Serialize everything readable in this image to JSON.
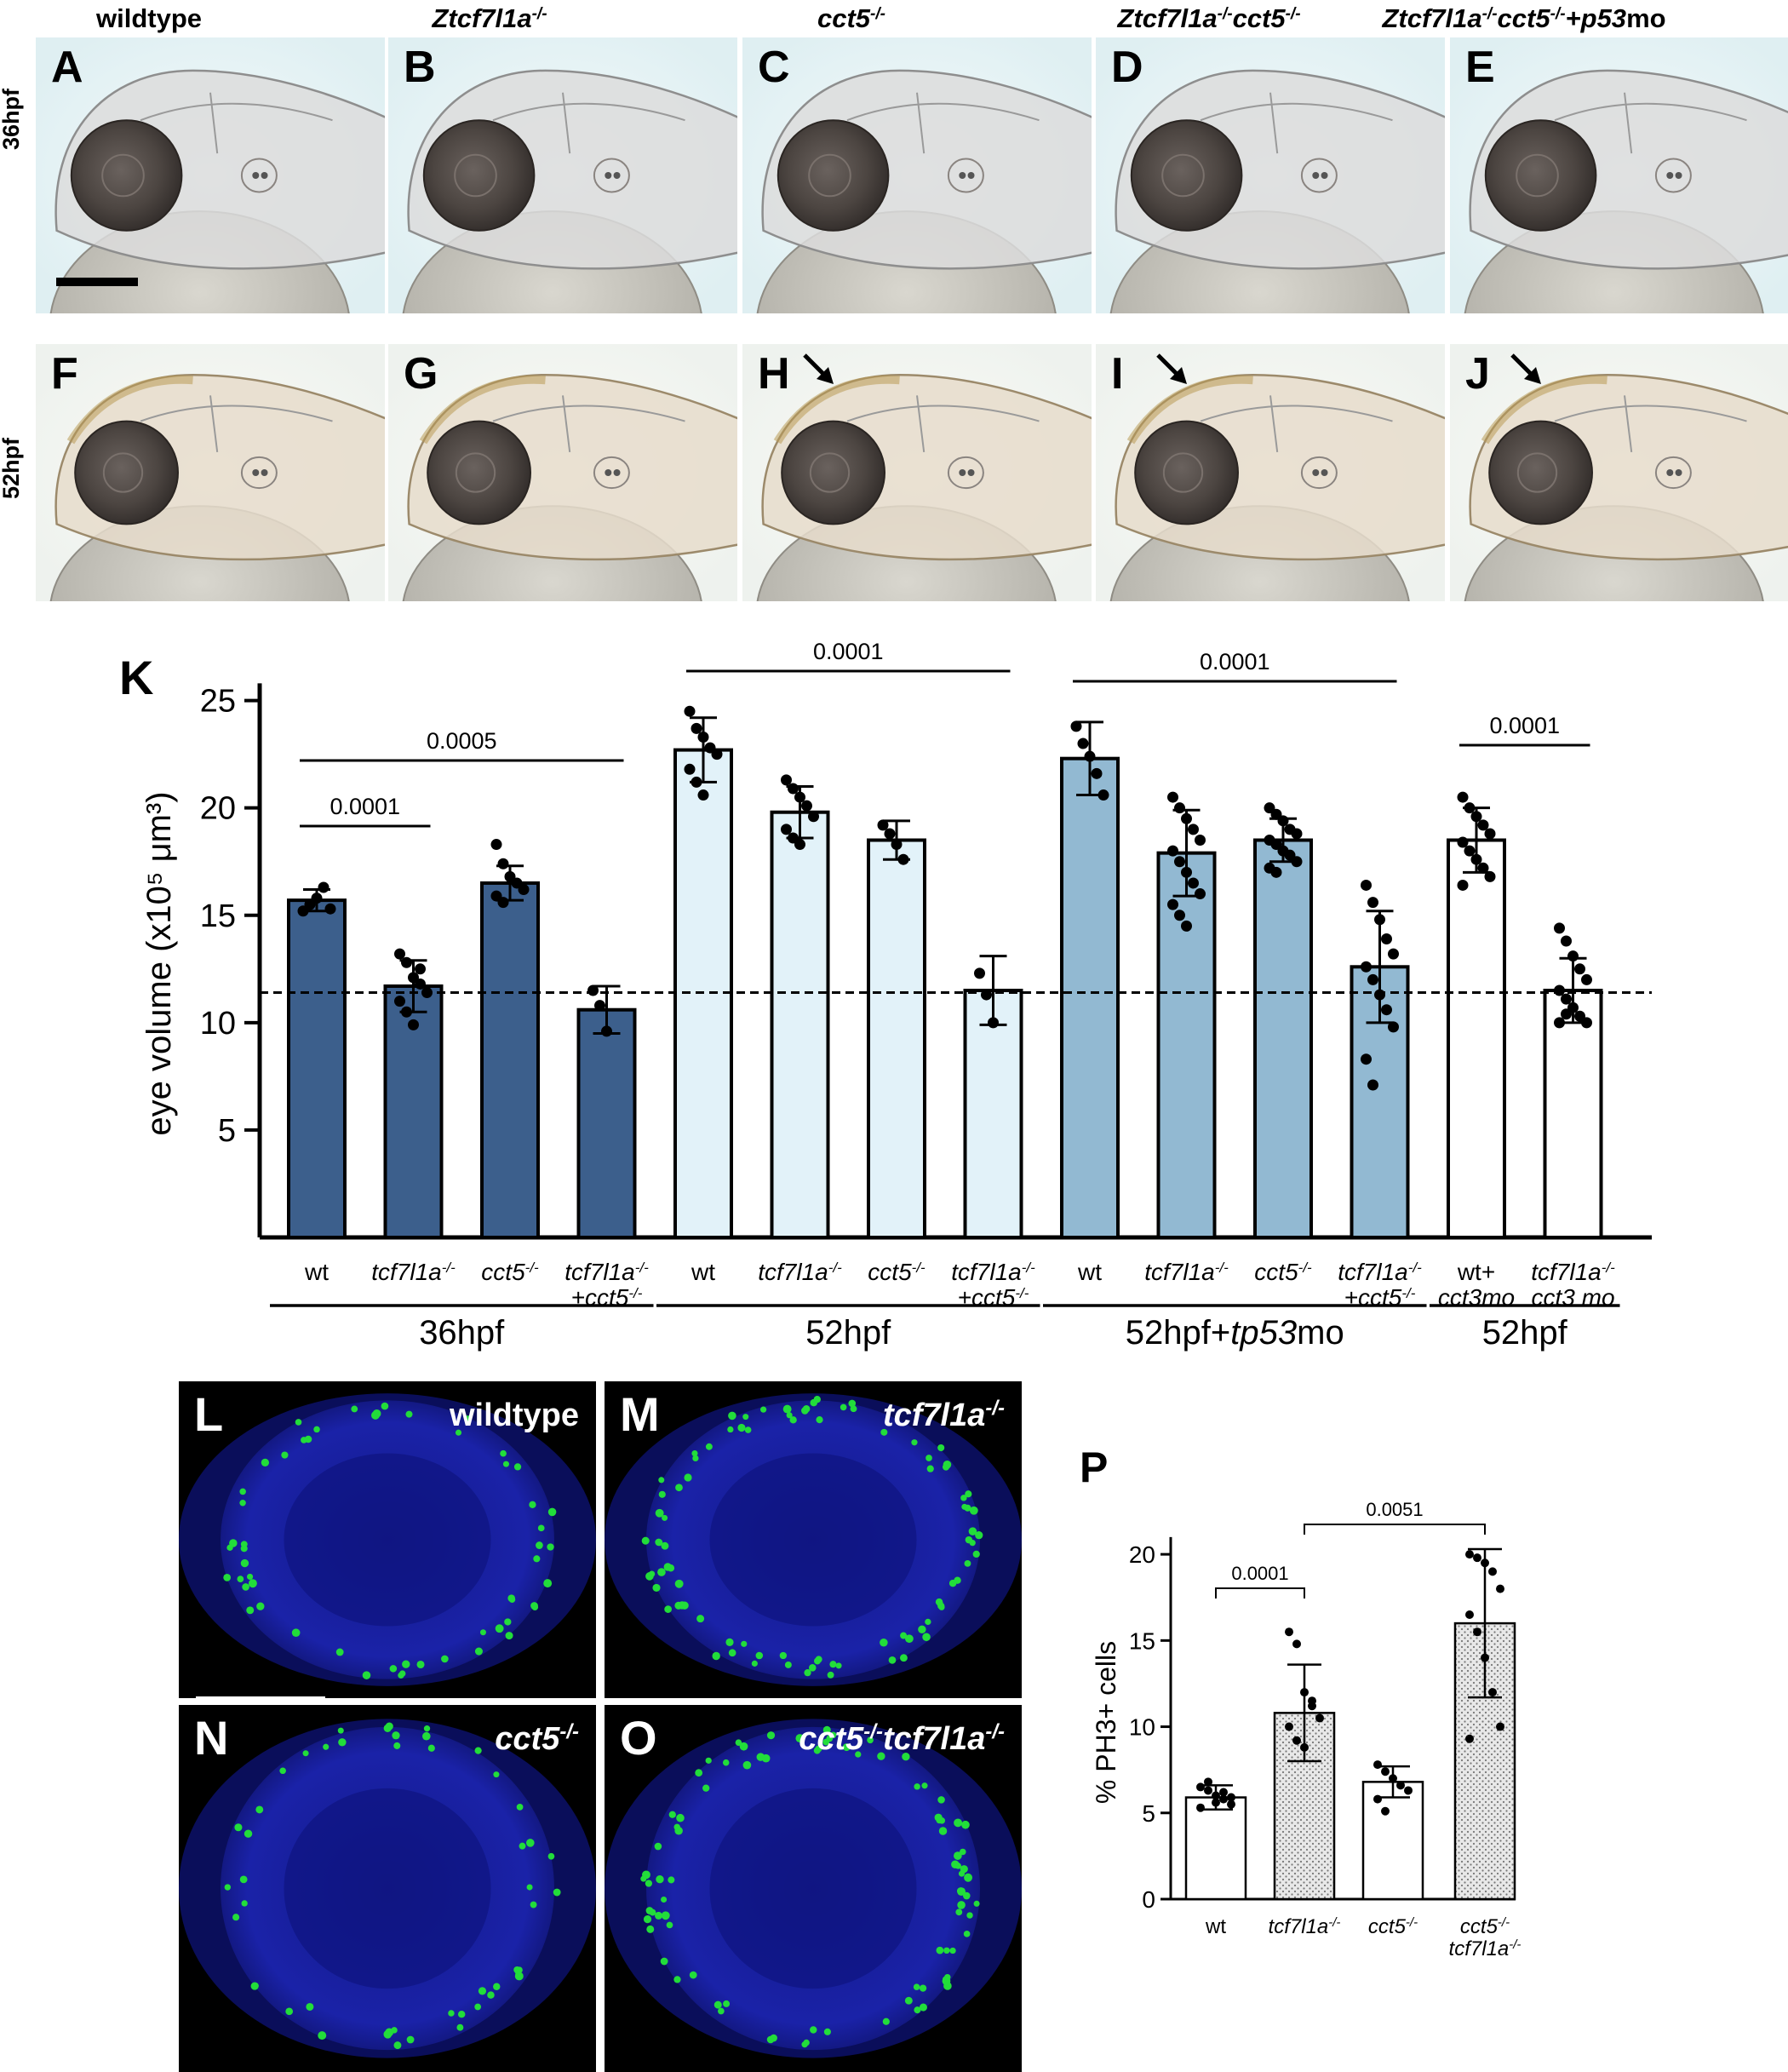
{
  "colors": {
    "dark_blue": "#3c5f8c",
    "light_blue": "#e2f2f9",
    "mid_blue": "#92b9d2",
    "white": "#ffffff",
    "confocal_bg": "#000000",
    "nuclei_blue": "#1a22a8",
    "ph3_green": "#22dd3a",
    "embryo_bg": "#e9f6f8"
  },
  "column_headers": [
    {
      "text": "wildtype",
      "italic": false
    },
    {
      "text": "Ztcf7l1a-/-",
      "italic": true
    },
    {
      "text": "cct5-/-",
      "italic": true
    },
    {
      "text": "Ztcf7l1a-/-cct5-/-",
      "italic": true
    },
    {
      "text": "Ztcf7l1a-/-cct5-/-+p53mo",
      "italic": true
    }
  ],
  "row_labels": [
    "36hpf",
    "52hpf"
  ],
  "panel_letters_top": [
    "A",
    "B",
    "C",
    "D",
    "E"
  ],
  "panel_letters_bottom": [
    "F",
    "G",
    "H",
    "I",
    "J"
  ],
  "arrow_panels": [
    "H",
    "I",
    "J"
  ],
  "K": {
    "letter": "K",
    "ylabel": "eye volume (x10⁵ μm³)",
    "yticks": [
      "5",
      "10",
      "15",
      "20",
      "25"
    ],
    "dashed_line_value": 11.4,
    "bars": [
      {
        "label": "wt",
        "group": 0,
        "value": 15.7,
        "err": 0.5,
        "color": "dark_blue",
        "points": [
          15.2,
          15.5,
          15.8,
          16.3,
          15.3
        ]
      },
      {
        "label": "tcf7l1a-/-",
        "group": 0,
        "value": 11.7,
        "err": 1.2,
        "color": "dark_blue",
        "points": [
          13.2,
          12.8,
          12.1,
          11.8,
          11.4,
          11.0,
          10.5,
          9.9,
          12.5
        ]
      },
      {
        "label": "cct5-/-",
        "group": 0,
        "value": 16.5,
        "err": 0.8,
        "color": "dark_blue",
        "points": [
          18.3,
          17.4,
          16.8,
          16.5,
          16.2,
          15.9,
          15.6
        ]
      },
      {
        "label": "tcf7l1a-/- +cct5-/-",
        "group": 0,
        "value": 10.6,
        "err": 1.1,
        "color": "dark_blue",
        "points": [
          11.5,
          10.8,
          9.6
        ]
      },
      {
        "label": "wt",
        "group": 1,
        "value": 22.7,
        "err": 1.5,
        "color": "light_blue",
        "points": [
          24.5,
          23.7,
          23.3,
          22.8,
          22.5,
          21.8,
          21.2,
          20.6
        ]
      },
      {
        "label": "tcf7l1a-/-",
        "group": 1,
        "value": 19.8,
        "err": 1.2,
        "color": "light_blue",
        "points": [
          21.3,
          20.9,
          20.5,
          20.1,
          19.6,
          19.0,
          18.6,
          18.3
        ]
      },
      {
        "label": "cct5-/-",
        "group": 1,
        "value": 18.5,
        "err": 0.9,
        "color": "light_blue",
        "points": [
          19.2,
          18.8,
          18.3,
          17.6
        ]
      },
      {
        "label": "tcf7l1a-/- +cct5-/-",
        "group": 1,
        "value": 11.5,
        "err": 1.6,
        "color": "light_blue",
        "points": [
          12.3,
          11.3,
          10.0
        ]
      },
      {
        "label": "wt",
        "group": 2,
        "value": 22.3,
        "err": 1.7,
        "color": "mid_blue",
        "points": [
          23.8,
          23.0,
          22.4,
          21.6,
          20.6
        ]
      },
      {
        "label": "tcf7l1a-/-",
        "group": 2,
        "value": 17.9,
        "err": 2.0,
        "color": "mid_blue",
        "points": [
          20.5,
          20.0,
          19.5,
          19.0,
          18.5,
          18.0,
          17.5,
          17.0,
          16.5,
          16.0,
          15.5,
          15.0,
          14.5
        ]
      },
      {
        "label": "cct5-/-",
        "group": 2,
        "value": 18.5,
        "err": 1.0,
        "color": "mid_blue",
        "points": [
          20.0,
          19.7,
          19.4,
          19.0,
          18.8,
          18.5,
          18.3,
          18.0,
          17.8,
          17.5,
          17.2,
          17.0
        ]
      },
      {
        "label": "tcf7l1a-/- +cct5-/-",
        "group": 2,
        "value": 12.6,
        "err": 2.6,
        "color": "mid_blue",
        "points": [
          16.4,
          15.6,
          14.8,
          13.9,
          13.2,
          12.6,
          12.0,
          11.3,
          10.6,
          9.8,
          8.3,
          7.1
        ]
      },
      {
        "label": "wt+ cct3mo",
        "group": 3,
        "value": 18.5,
        "err": 1.5,
        "color": "white",
        "points": [
          20.5,
          20.0,
          19.6,
          19.2,
          18.8,
          18.4,
          18.0,
          17.6,
          17.2,
          16.8,
          16.4
        ]
      },
      {
        "label": "tcf7l1a-/- cct3 mo",
        "group": 3,
        "value": 11.5,
        "err": 1.5,
        "color": "white",
        "points": [
          14.4,
          13.8,
          13.1,
          12.5,
          12.0,
          11.5,
          11.1,
          10.7,
          10.3,
          10.0,
          10.0,
          10.4
        ]
      }
    ],
    "tick_labels": [
      {
        "l1": "wt",
        "l2": "",
        "it": false
      },
      {
        "l1": "tcf7l1a-/-",
        "l2": "",
        "it": true
      },
      {
        "l1": "cct5-/-",
        "l2": "",
        "it": true
      },
      {
        "l1": "tcf7l1a-/-",
        "l2": "+cct5-/-",
        "it": true
      },
      {
        "l1": "wt",
        "l2": "",
        "it": false
      },
      {
        "l1": "tcf7l1a-/-",
        "l2": "",
        "it": true
      },
      {
        "l1": "cct5-/-",
        "l2": "",
        "it": true
      },
      {
        "l1": "tcf7l1a-/-",
        "l2": "+cct5-/-",
        "it": true
      },
      {
        "l1": "wt",
        "l2": "",
        "it": false
      },
      {
        "l1": "tcf7l1a-/-",
        "l2": "",
        "it": true
      },
      {
        "l1": "cct5-/-",
        "l2": "",
        "it": true
      },
      {
        "l1": "tcf7l1a-/-",
        "l2": "+cct5-/-",
        "it": true
      },
      {
        "l1": "wt+",
        "l2": "cct3mo",
        "it": false
      },
      {
        "l1": "tcf7l1a-/-",
        "l2": "cct3 mo",
        "it": true
      }
    ],
    "groups": [
      "36hpf",
      "52hpf",
      "52hpf+tp53mo",
      "52hpf"
    ],
    "significance": [
      {
        "from": 0,
        "to": 1,
        "text": "0.0001"
      },
      {
        "from": 0,
        "to": 3,
        "text": "0.0005"
      },
      {
        "from": 4,
        "to": 7,
        "text": "0.0001"
      },
      {
        "from": 8,
        "to": 11,
        "text": "0.0001"
      },
      {
        "from": 12,
        "to": 13,
        "text": "0.0001"
      }
    ]
  },
  "confocal_panels": [
    {
      "letter": "L",
      "label": "wildtype",
      "italic": false
    },
    {
      "letter": "M",
      "label": "tcf7l1a-/-",
      "italic": true
    },
    {
      "letter": "N",
      "label": "cct5-/-",
      "italic": true
    },
    {
      "letter": "O",
      "label": "cct5-/-tcf7l1a-/-",
      "italic": true
    }
  ],
  "P": {
    "letter": "P",
    "ylabel": "% PH3+ cells",
    "yticks": [
      "0",
      "5",
      "10",
      "15",
      "20"
    ],
    "bars": [
      {
        "label": "wt",
        "value": 5.9,
        "err": 0.7,
        "dotted": false,
        "points": [
          6.5,
          6.3,
          6.0,
          5.8,
          5.5,
          5.3,
          6.8,
          5.6,
          6.2,
          5.9
        ]
      },
      {
        "label": "tcf7l1a-/-",
        "value": 10.8,
        "err": 2.8,
        "dotted": true,
        "points": [
          15.5,
          14.8,
          12.0,
          11.2,
          10.5,
          10.0,
          9.2,
          8.8,
          11.5
        ]
      },
      {
        "label": "cct5-/-",
        "value": 6.8,
        "err": 0.9,
        "dotted": false,
        "points": [
          7.8,
          7.4,
          7.0,
          6.6,
          6.3,
          5.8,
          5.1
        ]
      },
      {
        "label": "cct5-/- tcf7l1a-/-",
        "value": 16.0,
        "err": 4.3,
        "dotted": true,
        "points": [
          20.0,
          19.8,
          19.5,
          19.0,
          18.0,
          16.5,
          15.5,
          14.0,
          12.0,
          10.0,
          9.3
        ]
      }
    ],
    "tick_labels": [
      {
        "l1": "wt",
        "l2": "",
        "it": false
      },
      {
        "l1": "tcf7l1a-/-",
        "l2": "",
        "it": true
      },
      {
        "l1": "cct5-/-",
        "l2": "",
        "it": true
      },
      {
        "l1": "cct5-/-",
        "l2": "tcf7l1a-/-",
        "it": true
      }
    ],
    "significance": [
      {
        "from": 0,
        "to": 1,
        "text": "0.0001"
      },
      {
        "from": 1,
        "to": 3,
        "text": "0.0051"
      }
    ]
  }
}
